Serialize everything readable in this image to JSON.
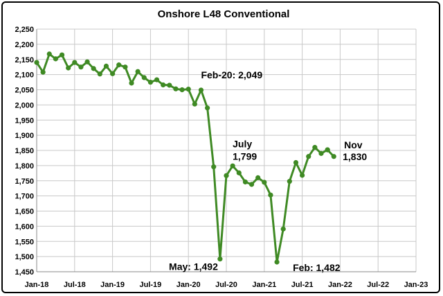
{
  "chart_data": {
    "type": "line",
    "title": "Onshore L48 Conventional",
    "xlabel": "",
    "ylabel": "",
    "grid": true,
    "ylim": [
      1450,
      2250
    ],
    "y_ticks": [
      1450,
      1500,
      1550,
      1600,
      1650,
      1700,
      1750,
      1800,
      1850,
      1900,
      1950,
      2000,
      2050,
      2100,
      2150,
      2200,
      2250
    ],
    "y_tick_labels": [
      "1,450",
      "1,500",
      "1,550",
      "1,600",
      "1,650",
      "1,700",
      "1,750",
      "1,800",
      "1,850",
      "1,900",
      "1,950",
      "2,000",
      "2,050",
      "2,100",
      "2,150",
      "2,200",
      "2,250"
    ],
    "xlim": [
      "2018-01",
      "2023-01"
    ],
    "x_ticks": [
      "2018-01",
      "2018-07",
      "2019-01",
      "2019-07",
      "2020-01",
      "2020-07",
      "2021-01",
      "2021-07",
      "2022-01",
      "2022-07",
      "2023-01"
    ],
    "x_tick_labels": [
      "Jan-18",
      "Jul-18",
      "Jan-19",
      "Jul-19",
      "Jan-20",
      "Jul-20",
      "Jan-21",
      "Jul-21",
      "Jan-22",
      "Jul-22",
      "Jan-23"
    ],
    "color": "#3f8a24",
    "series": [
      {
        "x": [
          "2018-01",
          "2018-02",
          "2018-03",
          "2018-04",
          "2018-05",
          "2018-06",
          "2018-07",
          "2018-08",
          "2018-09",
          "2018-10",
          "2018-11",
          "2018-12",
          "2019-01",
          "2019-02",
          "2019-03",
          "2019-04",
          "2019-05",
          "2019-06",
          "2019-07",
          "2019-08",
          "2019-09",
          "2019-10",
          "2019-11",
          "2019-12",
          "2020-01",
          "2020-02",
          "2020-03",
          "2020-04",
          "2020-05",
          "2020-06",
          "2020-07",
          "2020-08",
          "2020-09",
          "2020-10",
          "2020-11",
          "2020-12",
          "2021-01",
          "2021-02",
          "2021-03",
          "2021-04",
          "2021-05",
          "2021-06",
          "2021-07",
          "2021-08",
          "2021-09",
          "2021-10",
          "2021-11"
        ],
        "values": [
          2140,
          2108,
          2168,
          2152,
          2165,
          2122,
          2140,
          2125,
          2142,
          2120,
          2102,
          2128,
          2103,
          2132,
          2125,
          2072,
          2110,
          2090,
          2075,
          2083,
          2066,
          2065,
          2053,
          2050,
          2052,
          2003,
          2049,
          1990,
          1796,
          1492,
          1767,
          1799,
          1776,
          1746,
          1738,
          1760,
          1745,
          1703,
          1482,
          1591,
          1748,
          1810,
          1768,
          1830,
          1860,
          1840,
          1852
        ]
      },
      {
        "x": [
          "2021-11",
          "2021-12"
        ],
        "values": [
          1852,
          1830
        ]
      }
    ],
    "annotations": [
      {
        "text": "Feb-20: 2,049",
        "x": "2020-03",
        "y": 2049
      },
      {
        "text": "July",
        "x": "2020-08",
        "y": 1799
      },
      {
        "text": "1,799",
        "x": "2020-08",
        "y": 1799
      },
      {
        "text": "Nov",
        "x": "2021-11",
        "y": 1830
      },
      {
        "text": "1,830",
        "x": "2021-11",
        "y": 1830
      },
      {
        "text": "May: 1,492",
        "x": "2020-06",
        "y": 1492
      },
      {
        "text": "Feb: 1,482",
        "x": "2021-03",
        "y": 1482
      }
    ]
  }
}
